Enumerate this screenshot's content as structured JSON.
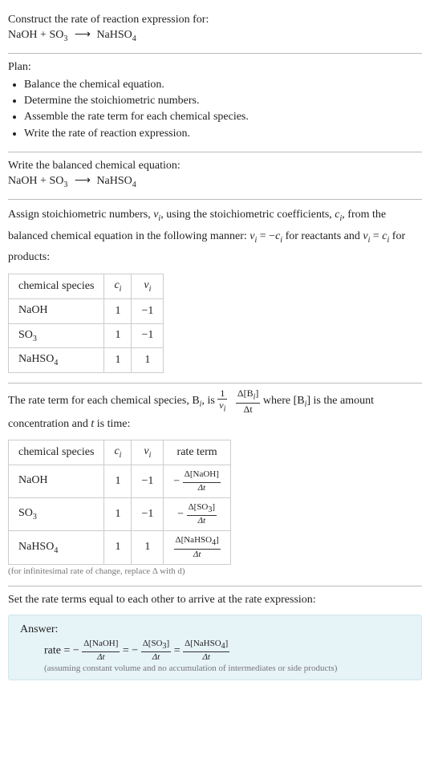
{
  "header": {
    "line1": "Construct the rate of reaction expression for:",
    "eq": {
      "left1": "NaOH",
      "plus": " + ",
      "left2": "SO",
      "left2sub": "3",
      "arrow": "⟶",
      "right": "NaHSO",
      "rightsub": "4"
    }
  },
  "plan": {
    "title": "Plan:",
    "items": [
      "Balance the chemical equation.",
      "Determine the stoichiometric numbers.",
      "Assemble the rate term for each chemical species.",
      "Write the rate of reaction expression."
    ]
  },
  "balanced": {
    "title": "Write the balanced chemical equation:"
  },
  "stoich": {
    "intro1": "Assign stoichiometric numbers, ",
    "vi": "ν",
    "visub": "i",
    "intro2": ", using the stoichiometric coefficients, ",
    "ci": "c",
    "cisub": "i",
    "intro3": ", from the balanced chemical equation in the following manner: ",
    "eq1": "ν",
    "eq1sub": "i",
    "eq1mid": " = −",
    "eq1c": "c",
    "eq1csub": "i",
    "intro4": " for reactants and ",
    "eq2": "ν",
    "eq2sub": "i",
    "eq2mid": " = ",
    "eq2c": "c",
    "eq2csub": "i",
    "intro5": " for products:",
    "headers": {
      "species": "chemical species",
      "c": "c",
      "csub": "i",
      "v": "ν",
      "vsub": "i"
    },
    "rows": [
      {
        "name": "NaOH",
        "sub": "",
        "c": "1",
        "v": "−1"
      },
      {
        "name": "SO",
        "sub": "3",
        "c": "1",
        "v": "−1"
      },
      {
        "name": "NaHSO",
        "sub": "4",
        "c": "1",
        "v": "1"
      }
    ]
  },
  "rateterm": {
    "intro1": "The rate term for each chemical species, B",
    "bsub": "i",
    "intro2": ", is ",
    "frac1": {
      "num": "1",
      "den_sym": "ν",
      "den_sub": "i"
    },
    "frac2": {
      "num_pre": "Δ[B",
      "num_sub": "i",
      "num_post": "]",
      "den": "Δt"
    },
    "intro3": " where [B",
    "intro3sub": "i",
    "intro4": "] is the amount concentration and ",
    "t": "t",
    "intro5": " is time:",
    "headers": {
      "species": "chemical species",
      "c": "c",
      "csub": "i",
      "v": "ν",
      "vsub": "i",
      "rate": "rate term"
    },
    "rows": [
      {
        "name": "NaOH",
        "sub": "",
        "c": "1",
        "v": "−1",
        "sign": "− ",
        "num_pre": "Δ[NaOH]",
        "num_sub": "",
        "num_post": "",
        "den": "Δt"
      },
      {
        "name": "SO",
        "sub": "3",
        "c": "1",
        "v": "−1",
        "sign": "− ",
        "num_pre": "Δ[SO",
        "num_sub": "3",
        "num_post": "]",
        "den": "Δt"
      },
      {
        "name": "NaHSO",
        "sub": "4",
        "c": "1",
        "v": "1",
        "sign": "",
        "num_pre": "Δ[NaHSO",
        "num_sub": "4",
        "num_post": "]",
        "den": "Δt"
      }
    ],
    "note": "(for infinitesimal rate of change, replace Δ with d)"
  },
  "final": {
    "title": "Set the rate terms equal to each other to arrive at the rate expression:",
    "answer_label": "Answer:",
    "prefix": "rate = − ",
    "eqsign": " = − ",
    "eqsign2": " = ",
    "terms": [
      {
        "num_pre": "Δ[NaOH]",
        "num_sub": "",
        "num_post": "",
        "den": "Δt"
      },
      {
        "num_pre": "Δ[SO",
        "num_sub": "3",
        "num_post": "]",
        "den": "Δt"
      },
      {
        "num_pre": "Δ[NaHSO",
        "num_sub": "4",
        "num_post": "]",
        "den": "Δt"
      }
    ],
    "note": "(assuming constant volume and no accumulation of intermediates or side products)"
  },
  "colors": {
    "answer_bg": "#e6f3f7",
    "answer_border": "#cfe7ee",
    "rule": "#bbbbbb",
    "text": "#222222"
  }
}
